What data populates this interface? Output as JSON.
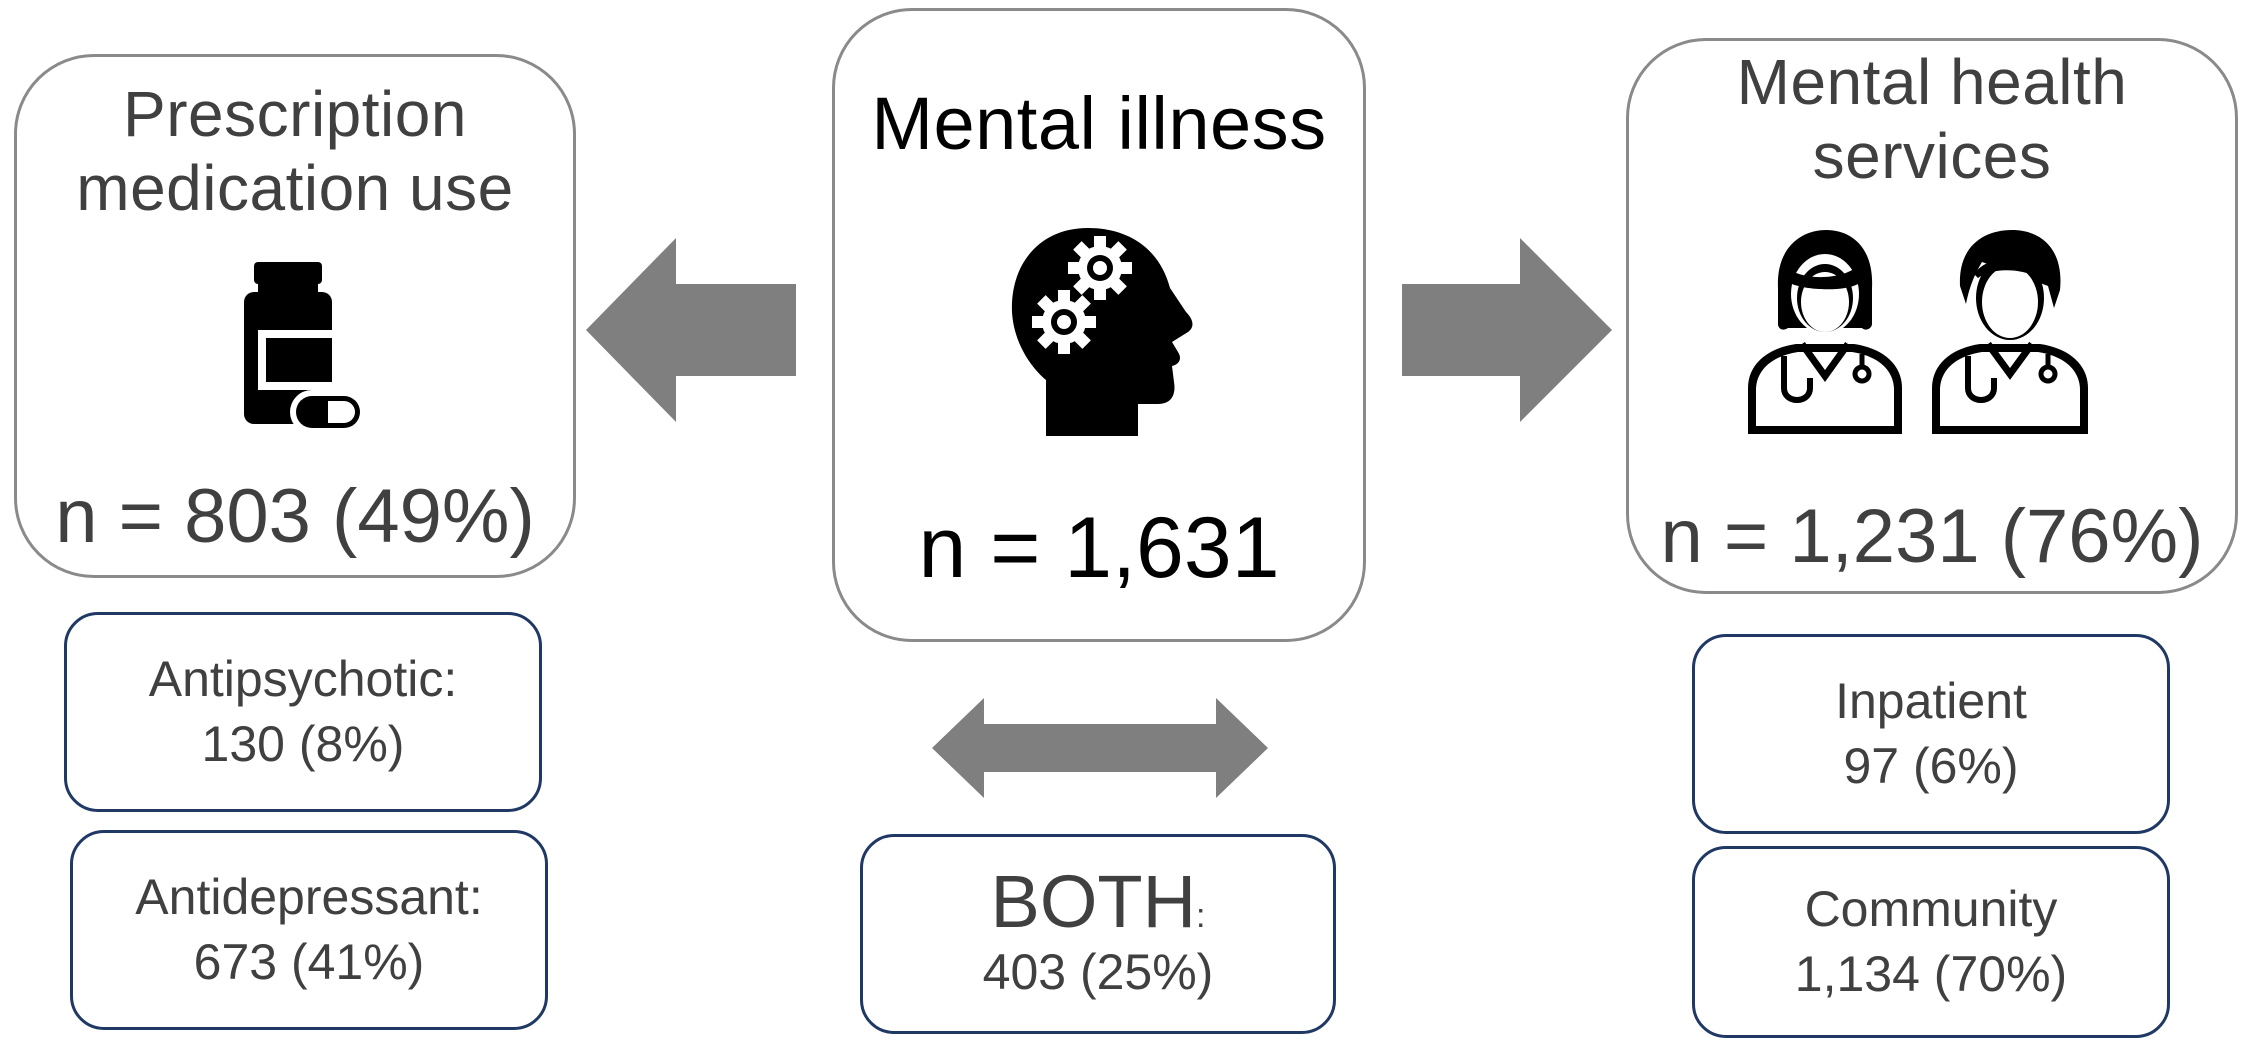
{
  "left_panel": {
    "title_line1": "Prescription",
    "title_line2": "medication use",
    "count": "n = 803 (49%)",
    "icon": "pill-bottle-icon"
  },
  "center_panel": {
    "title": "Mental illness",
    "count": "n = 1,631",
    "icon": "head-gears-icon"
  },
  "right_panel": {
    "title_line1": "Mental health",
    "title_line2": "services",
    "count": "n = 1,231 (76%)",
    "icon": "doctors-icon"
  },
  "sub_boxes": {
    "antipsychotic_label": "Antipsychotic:",
    "antipsychotic_value": "130 (8%)",
    "antidepressant_label": "Antidepressant:",
    "antidepressant_value": "673 (41%)",
    "both_label": "BOTH",
    "both_colon": ":",
    "both_value": "403 (25%)",
    "inpatient_label": "Inpatient",
    "inpatient_value": "97 (6%)",
    "community_label": "Community",
    "community_value": "1,134 (70%)"
  },
  "colors": {
    "arrow": "#7f7f7f",
    "big_box_border": "#8a8a8a",
    "small_box_border": "#1f3864",
    "text": "#404040",
    "icon": "#000000"
  }
}
